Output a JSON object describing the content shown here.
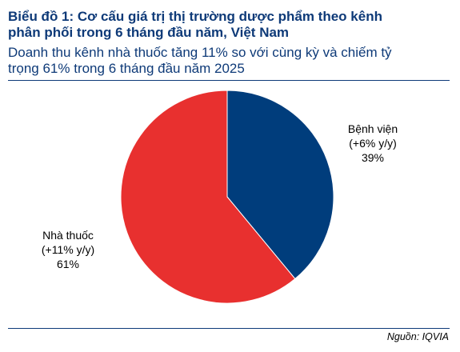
{
  "header": {
    "title_line1": "Biểu đồ 1: Cơ cấu giá trị thị trường dược phẩm theo kênh",
    "title_line2": "phân phối trong 6 tháng đầu năm, Việt Nam",
    "subtitle_line1": "Doanh thu kênh nhà thuốc tăng 11% so với cùng kỳ và chiếm tỷ",
    "subtitle_line2": "trọng 61% trong 6 tháng đầu năm 2025"
  },
  "chart_data": {
    "type": "pie",
    "start_angle_deg": 0,
    "direction": "clockwise",
    "slices": [
      {
        "label": "Bệnh viện",
        "change": "(+6% y/y)",
        "pct_label": "39%",
        "value": 39,
        "color": "#003d7c",
        "label_side": "right"
      },
      {
        "label": "Nhà thuốc",
        "change": "(+11% y/y)",
        "pct_label": "61%",
        "value": 61,
        "color": "#e8302f",
        "label_side": "left"
      }
    ]
  },
  "footer": {
    "source": "Nguồn: IQVIA"
  }
}
